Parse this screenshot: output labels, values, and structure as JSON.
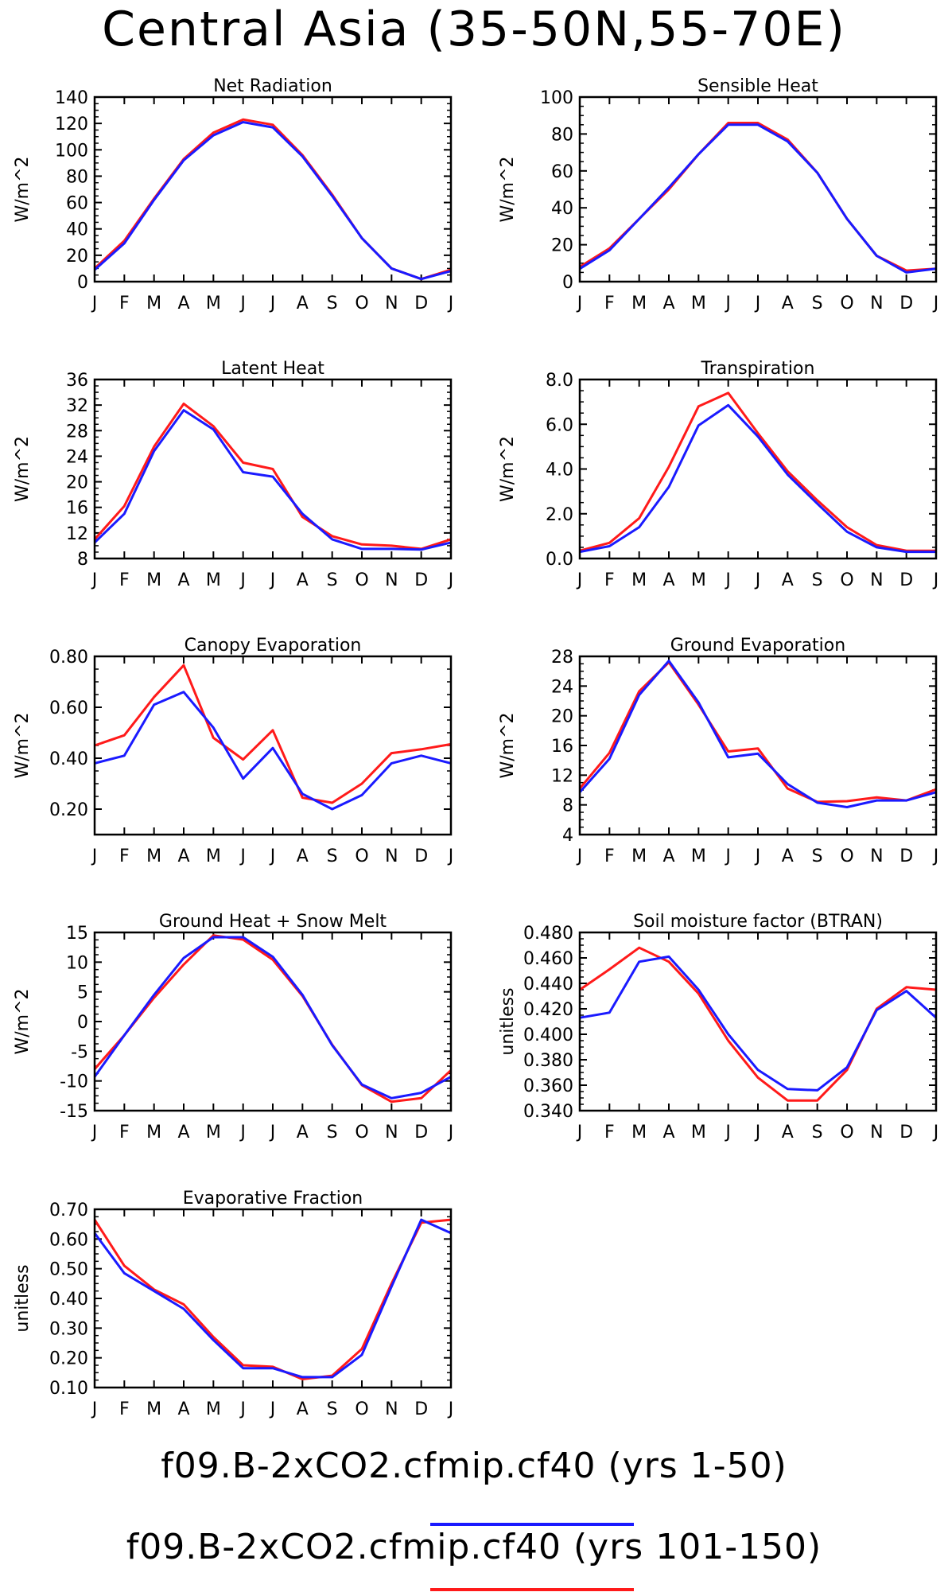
{
  "page": {
    "title": "Central Asia (35-50N,55-70E)"
  },
  "legend": [
    {
      "label": "f09.B-2xCO2.cfmip.cf40 (yrs 1-50)",
      "color": "#1a1aff"
    },
    {
      "label": "f09.B-2xCO2.cfmip.cf40 (yrs 101-150)",
      "color": "#ff1a1a"
    }
  ],
  "chart_data": [
    {
      "type": "line",
      "title": "Net Radiation",
      "ylabel": "W/m^2",
      "categories": [
        "J",
        "F",
        "M",
        "A",
        "M",
        "J",
        "J",
        "A",
        "S",
        "O",
        "N",
        "D",
        "J"
      ],
      "ylim": [
        0,
        140
      ],
      "yticks": [
        0,
        20,
        40,
        60,
        80,
        100,
        120,
        140
      ],
      "ytick_labels": [
        "0",
        "20",
        "40",
        "60",
        "80",
        "100",
        "120",
        "140"
      ],
      "series": [
        {
          "color": "#ff1a1a",
          "values": [
            10,
            31,
            63,
            93,
            113,
            123,
            119,
            96,
            66,
            33,
            10,
            2,
            9
          ]
        },
        {
          "color": "#1a1aff",
          "values": [
            9,
            29,
            62,
            92,
            111,
            121,
            117,
            95,
            65,
            33,
            10,
            2,
            8
          ]
        }
      ]
    },
    {
      "type": "line",
      "title": "Sensible Heat",
      "ylabel": "W/m^2",
      "categories": [
        "J",
        "F",
        "M",
        "A",
        "M",
        "J",
        "J",
        "A",
        "S",
        "O",
        "N",
        "D",
        "J"
      ],
      "ylim": [
        0,
        100
      ],
      "yticks": [
        0,
        20,
        40,
        60,
        80,
        100
      ],
      "ytick_labels": [
        "0",
        "20",
        "40",
        "60",
        "80",
        "100"
      ],
      "series": [
        {
          "color": "#ff1a1a",
          "values": [
            8,
            18,
            34,
            50,
            69,
            86,
            86,
            77,
            59,
            34,
            14,
            6,
            7
          ]
        },
        {
          "color": "#1a1aff",
          "values": [
            7,
            17,
            34,
            51,
            69,
            85,
            85,
            76,
            59,
            34,
            14,
            5,
            7
          ]
        }
      ]
    },
    {
      "type": "line",
      "title": "Latent Heat",
      "ylabel": "W/m^2",
      "categories": [
        "J",
        "F",
        "M",
        "A",
        "M",
        "J",
        "J",
        "A",
        "S",
        "O",
        "N",
        "D",
        "J"
      ],
      "ylim": [
        8,
        36
      ],
      "yticks": [
        8,
        12,
        16,
        20,
        24,
        28,
        32,
        36
      ],
      "ytick_labels": [
        "8",
        "12",
        "16",
        "20",
        "24",
        "28",
        "32",
        "36"
      ],
      "series": [
        {
          "color": "#ff1a1a",
          "values": [
            11,
            16.2,
            25.5,
            32.2,
            28.7,
            23,
            22,
            14.5,
            11.5,
            10.2,
            10,
            9.5,
            11
          ]
        },
        {
          "color": "#1a1aff",
          "values": [
            10.5,
            15,
            24.8,
            31.2,
            28.2,
            21.5,
            20.8,
            15,
            11,
            9.5,
            9.5,
            9.4,
            10.5
          ]
        }
      ]
    },
    {
      "type": "line",
      "title": "Transpiration",
      "ylabel": "W/m^2",
      "categories": [
        "J",
        "F",
        "M",
        "A",
        "M",
        "J",
        "J",
        "A",
        "S",
        "O",
        "N",
        "D",
        "J"
      ],
      "ylim": [
        0,
        8
      ],
      "yticks": [
        0,
        2,
        4,
        6,
        8
      ],
      "ytick_labels": [
        "0.0",
        "2.0",
        "4.0",
        "6.0",
        "8.0"
      ],
      "series": [
        {
          "color": "#ff1a1a",
          "values": [
            0.35,
            0.7,
            1.8,
            4.1,
            6.8,
            7.4,
            5.6,
            3.9,
            2.6,
            1.4,
            0.6,
            0.35,
            0.35
          ]
        },
        {
          "color": "#1a1aff",
          "values": [
            0.3,
            0.55,
            1.4,
            3.2,
            5.95,
            6.85,
            5.45,
            3.75,
            2.45,
            1.2,
            0.5,
            0.3,
            0.3
          ]
        }
      ]
    },
    {
      "type": "line",
      "title": "Canopy Evaporation",
      "ylabel": "W/m^2",
      "categories": [
        "J",
        "F",
        "M",
        "A",
        "M",
        "J",
        "J",
        "A",
        "S",
        "O",
        "N",
        "D",
        "J"
      ],
      "ylim": [
        0.1,
        0.8
      ],
      "yticks": [
        0.2,
        0.4,
        0.6,
        0.8
      ],
      "ytick_labels": [
        "0.20",
        "0.40",
        "0.60",
        "0.80"
      ],
      "series": [
        {
          "color": "#ff1a1a",
          "values": [
            0.45,
            0.49,
            0.64,
            0.765,
            0.48,
            0.395,
            0.51,
            0.245,
            0.225,
            0.3,
            0.42,
            0.435,
            0.455
          ]
        },
        {
          "color": "#1a1aff",
          "values": [
            0.38,
            0.41,
            0.61,
            0.66,
            0.52,
            0.32,
            0.44,
            0.26,
            0.2,
            0.255,
            0.38,
            0.41,
            0.38
          ]
        }
      ]
    },
    {
      "type": "line",
      "title": "Ground Evaporation",
      "ylabel": "W/m^2",
      "categories": [
        "J",
        "F",
        "M",
        "A",
        "M",
        "J",
        "J",
        "A",
        "S",
        "O",
        "N",
        "D",
        "J"
      ],
      "ylim": [
        4,
        28
      ],
      "yticks": [
        4,
        8,
        12,
        16,
        20,
        24,
        28
      ],
      "ytick_labels": [
        "4",
        "8",
        "12",
        "16",
        "20",
        "24",
        "28"
      ],
      "series": [
        {
          "color": "#ff1a1a",
          "values": [
            10.2,
            15,
            23.3,
            27.2,
            21.5,
            15.2,
            15.6,
            10.2,
            8.4,
            8.5,
            9,
            8.6,
            10.1
          ]
        },
        {
          "color": "#1a1aff",
          "values": [
            9.7,
            14.2,
            22.8,
            27.4,
            21.8,
            14.4,
            14.9,
            10.8,
            8.3,
            7.7,
            8.6,
            8.6,
            9.7
          ]
        }
      ]
    },
    {
      "type": "line",
      "title": "Ground Heat + Snow Melt",
      "ylabel": "W/m^2",
      "categories": [
        "J",
        "F",
        "M",
        "A",
        "M",
        "J",
        "J",
        "A",
        "S",
        "O",
        "N",
        "D",
        "J"
      ],
      "ylim": [
        -15,
        15
      ],
      "yticks": [
        -15,
        -10,
        -5,
        0,
        5,
        10,
        15
      ],
      "ytick_labels": [
        "-15",
        "-10",
        "-5",
        "0",
        "5",
        "10",
        "15"
      ],
      "series": [
        {
          "color": "#ff1a1a",
          "values": [
            -8,
            -2.3,
            4,
            9.6,
            14.5,
            13.8,
            10.4,
            4.3,
            -3.9,
            -10.7,
            -13.5,
            -12.9,
            -8.2
          ]
        },
        {
          "color": "#1a1aff",
          "values": [
            -9.3,
            -2.3,
            4.5,
            10.7,
            14.2,
            14.2,
            10.9,
            4.5,
            -4,
            -10.6,
            -12.9,
            -12,
            -9.3
          ]
        }
      ]
    },
    {
      "type": "line",
      "title": "Soil moisture factor (BTRAN)",
      "ylabel": "unitless",
      "categories": [
        "J",
        "F",
        "M",
        "A",
        "M",
        "J",
        "J",
        "A",
        "S",
        "O",
        "N",
        "D",
        "J"
      ],
      "ylim": [
        0.34,
        0.48
      ],
      "yticks": [
        0.34,
        0.36,
        0.38,
        0.4,
        0.42,
        0.44,
        0.46,
        0.48
      ],
      "ytick_labels": [
        "0.340",
        "0.360",
        "0.380",
        "0.400",
        "0.420",
        "0.440",
        "0.460",
        "0.480"
      ],
      "series": [
        {
          "color": "#ff1a1a",
          "values": [
            0.435,
            0.451,
            0.468,
            0.457,
            0.432,
            0.395,
            0.366,
            0.348,
            0.348,
            0.372,
            0.42,
            0.437,
            0.435
          ]
        },
        {
          "color": "#1a1aff",
          "values": [
            0.413,
            0.417,
            0.457,
            0.461,
            0.435,
            0.4,
            0.372,
            0.357,
            0.356,
            0.374,
            0.419,
            0.434,
            0.413
          ]
        }
      ]
    },
    {
      "type": "line",
      "title": "Evaporative Fraction",
      "ylabel": "unitless",
      "categories": [
        "J",
        "F",
        "M",
        "A",
        "M",
        "J",
        "J",
        "A",
        "S",
        "O",
        "N",
        "D",
        "J"
      ],
      "ylim": [
        0.1,
        0.7
      ],
      "yticks": [
        0.1,
        0.2,
        0.3,
        0.4,
        0.5,
        0.6,
        0.7
      ],
      "ytick_labels": [
        "0.10",
        "0.20",
        "0.30",
        "0.40",
        "0.50",
        "0.60",
        "0.70"
      ],
      "series": [
        {
          "color": "#ff1a1a",
          "values": [
            0.665,
            0.51,
            0.43,
            0.38,
            0.27,
            0.175,
            0.17,
            0.128,
            0.14,
            0.23,
            0.45,
            0.655,
            0.665
          ]
        },
        {
          "color": "#1a1aff",
          "values": [
            0.62,
            0.485,
            0.425,
            0.365,
            0.26,
            0.165,
            0.165,
            0.135,
            0.135,
            0.21,
            0.44,
            0.665,
            0.62
          ]
        }
      ]
    }
  ]
}
